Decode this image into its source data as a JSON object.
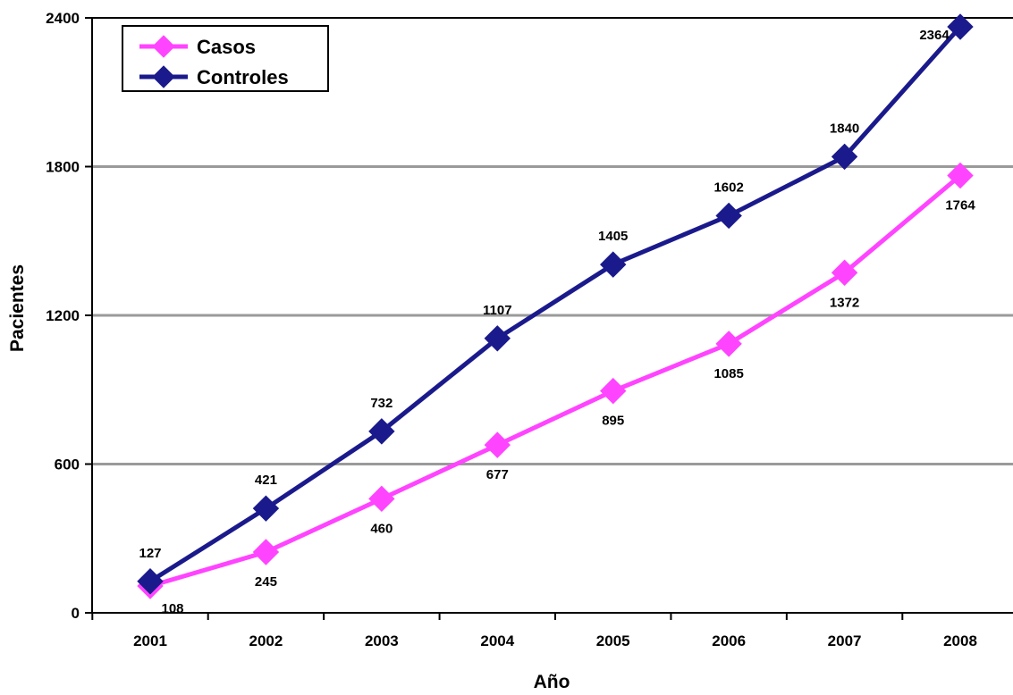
{
  "chart_data": {
    "type": "line",
    "title": "",
    "xlabel": "Año",
    "ylabel": "Pacientes",
    "categories": [
      "2001",
      "2002",
      "2003",
      "2004",
      "2005",
      "2006",
      "2007",
      "2008"
    ],
    "ylim": [
      0,
      2400
    ],
    "yticks": [
      0,
      600,
      1200,
      1800,
      2400
    ],
    "grid": "horizontal",
    "legend_position": "top-left",
    "series": [
      {
        "name": "Casos",
        "color": "#ff44ff",
        "values": [
          108,
          245,
          460,
          677,
          895,
          1085,
          1372,
          1764
        ],
        "label_position": "below"
      },
      {
        "name": "Controles",
        "color": "#1a1a8c",
        "values": [
          127,
          421,
          732,
          1107,
          1405,
          1602,
          1840,
          2364
        ],
        "label_position": "above"
      }
    ]
  }
}
